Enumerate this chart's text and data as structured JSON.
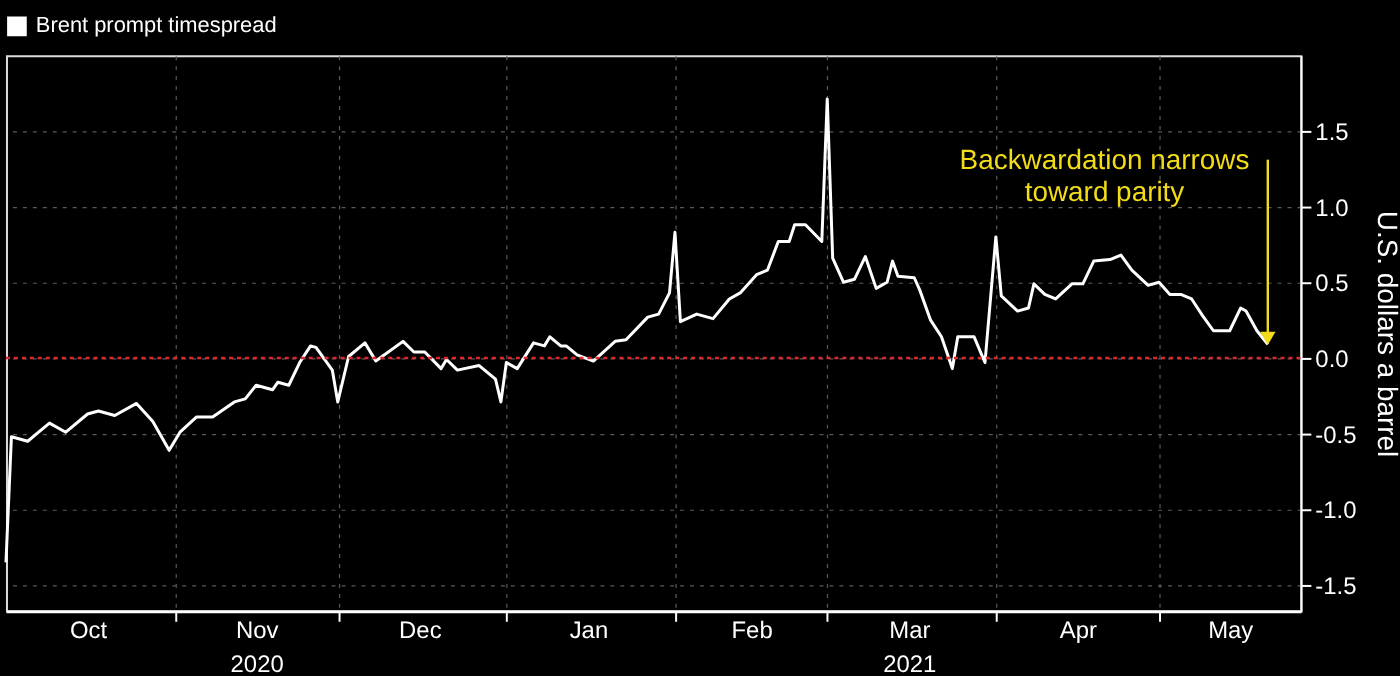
{
  "chart_data": {
    "type": "line",
    "x": [
      "2020-10-01",
      "2020-10-02",
      "2020-10-05",
      "2020-10-07",
      "2020-10-09",
      "2020-10-12",
      "2020-10-16",
      "2020-10-18",
      "2020-10-21",
      "2020-10-25",
      "2020-10-28",
      "2020-10-31",
      "2020-11-02",
      "2020-11-05",
      "2020-11-08",
      "2020-11-12",
      "2020-11-14",
      "2020-11-16",
      "2020-11-19",
      "2020-11-20",
      "2020-11-22",
      "2020-11-24",
      "2020-11-26",
      "2020-11-27",
      "2020-11-30",
      "2020-12-01",
      "2020-12-03",
      "2020-12-06",
      "2020-12-08",
      "2020-12-13",
      "2020-12-15",
      "2020-12-17",
      "2020-12-20",
      "2020-12-21",
      "2020-12-23",
      "2020-12-27",
      "2020-12-30",
      "2020-12-31",
      "2021-01-01",
      "2021-01-03",
      "2021-01-06",
      "2021-01-08",
      "2021-01-09",
      "2021-01-11",
      "2021-01-12",
      "2021-01-14",
      "2021-01-17",
      "2021-01-21",
      "2021-01-23",
      "2021-01-27",
      "2021-01-29",
      "2021-01-31",
      "2021-02-01",
      "2021-02-02",
      "2021-02-05",
      "2021-02-08",
      "2021-02-11",
      "2021-02-13",
      "2021-02-16",
      "2021-02-18",
      "2021-02-20",
      "2021-02-22",
      "2021-02-23",
      "2021-02-25",
      "2021-02-28",
      "2021-03-01",
      "2021-03-02",
      "2021-03-04",
      "2021-03-06",
      "2021-03-08",
      "2021-03-10",
      "2021-03-12",
      "2021-03-13",
      "2021-03-14",
      "2021-03-17",
      "2021-03-18",
      "2021-03-20",
      "2021-03-22",
      "2021-03-24",
      "2021-03-25",
      "2021-03-28",
      "2021-03-30",
      "2021-04-01",
      "2021-04-02",
      "2021-04-05",
      "2021-04-07",
      "2021-04-08",
      "2021-04-10",
      "2021-04-12",
      "2021-04-15",
      "2021-04-17",
      "2021-04-19",
      "2021-04-22",
      "2021-04-24",
      "2021-04-26",
      "2021-04-29",
      "2021-05-01",
      "2021-05-03",
      "2021-05-05",
      "2021-05-07",
      "2021-05-09",
      "2021-05-11",
      "2021-05-14",
      "2021-05-16",
      "2021-05-17",
      "2021-05-19",
      "2021-05-21"
    ],
    "series": [
      {
        "name": "Brent prompt timespread",
        "color": "#ffffff",
        "values": [
          -1.35,
          -0.52,
          -0.55,
          -0.49,
          -0.43,
          -0.49,
          -0.37,
          -0.35,
          -0.38,
          -0.3,
          -0.42,
          -0.61,
          -0.49,
          -0.39,
          -0.39,
          -0.29,
          -0.27,
          -0.18,
          -0.21,
          -0.16,
          -0.18,
          -0.03,
          0.08,
          0.07,
          -0.08,
          -0.29,
          0.01,
          0.1,
          -0.02,
          0.11,
          0.04,
          0.04,
          -0.07,
          -0.01,
          -0.08,
          -0.05,
          -0.14,
          -0.29,
          -0.03,
          -0.07,
          0.1,
          0.08,
          0.14,
          0.08,
          0.08,
          0.02,
          -0.02,
          0.11,
          0.12,
          0.27,
          0.29,
          0.43,
          0.83,
          0.24,
          0.29,
          0.26,
          0.39,
          0.43,
          0.55,
          0.58,
          0.77,
          0.77,
          0.88,
          0.88,
          0.77,
          1.71,
          0.66,
          0.5,
          0.52,
          0.67,
          0.46,
          0.5,
          0.64,
          0.54,
          0.53,
          0.45,
          0.25,
          0.14,
          -0.07,
          0.14,
          0.14,
          -0.03,
          0.8,
          0.41,
          0.31,
          0.33,
          0.49,
          0.42,
          0.39,
          0.49,
          0.49,
          0.64,
          0.65,
          0.68,
          0.58,
          0.48,
          0.5,
          0.42,
          0.42,
          0.39,
          0.28,
          0.18,
          0.18,
          0.33,
          0.31,
          0.18,
          0.09
        ]
      }
    ],
    "xlim": [
      "2020-10-01",
      "2021-05-27"
    ],
    "xticks": [
      {
        "value": "2020-11-01",
        "label": null
      },
      {
        "value": "2020-12-01",
        "label": null
      },
      {
        "value": "2021-01-01",
        "label": null
      },
      {
        "value": "2021-02-01",
        "label": null
      },
      {
        "value": "2021-03-01",
        "label": null
      },
      {
        "value": "2021-04-01",
        "label": null
      },
      {
        "value": "2021-05-01",
        "label": null
      },
      {
        "value": "2020-10-16",
        "label": "Oct"
      },
      {
        "value": "2020-11-16",
        "label": "Nov\n2020"
      },
      {
        "value": "2020-12-16",
        "label": "Dec"
      },
      {
        "value": "2021-01-16",
        "label": "Jan"
      },
      {
        "value": "2021-02-15",
        "label": "Feb"
      },
      {
        "value": "2021-03-16",
        "label": "Mar\n2021"
      },
      {
        "value": "2021-04-16",
        "label": "Apr"
      },
      {
        "value": "2021-05-14",
        "label": "May"
      }
    ],
    "ylim": [
      -1.67,
      2.0
    ],
    "yticks": [
      {
        "value": -1.5,
        "label": "-1.5"
      },
      {
        "value": -1.0,
        "label": "-1.0"
      },
      {
        "value": -0.5,
        "label": "-0.5"
      },
      {
        "value": 0,
        "label": "0.0"
      },
      {
        "value": 0.5,
        "label": "0.5"
      },
      {
        "value": 1.0,
        "label": "1.0"
      },
      {
        "value": 1.5,
        "label": "1.5"
      }
    ],
    "ylabel": "U.S. dollars a barrel",
    "ref_lines": [
      {
        "axis": "y",
        "value": 0,
        "color": "#e0262f",
        "line_style": "dotted"
      }
    ],
    "annotations": [
      {
        "text": "Backwardation narrows\ntoward parity",
        "x": "2021-05-21",
        "y": 0.09
      }
    ],
    "grid": true,
    "legend": "top left",
    "line_style": "solid"
  }
}
